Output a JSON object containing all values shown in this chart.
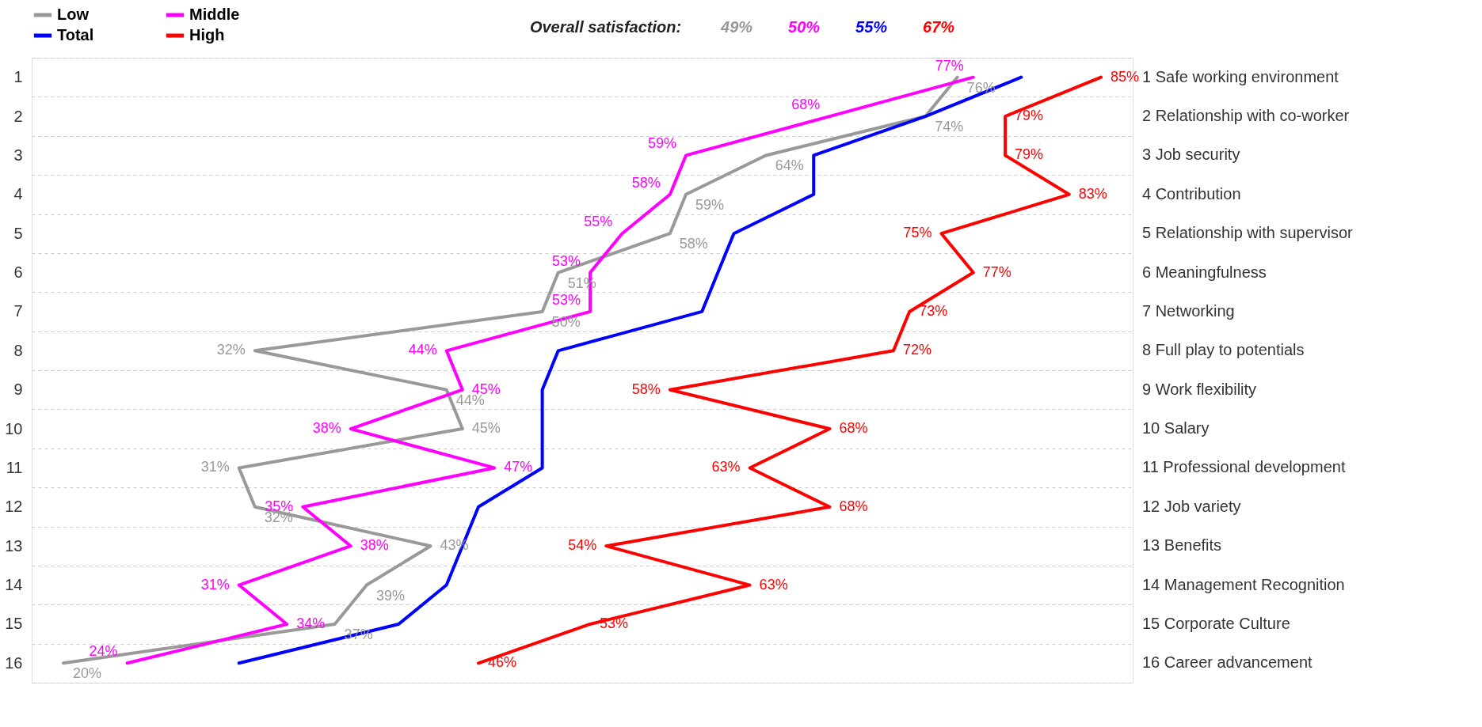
{
  "chart_data": {
    "type": "line",
    "orientation": "horizontal",
    "grid": "y",
    "legend": "top left",
    "marker": "none",
    "line_style": "solid",
    "categories": [
      "1",
      "2",
      "3",
      "4",
      "5",
      "6",
      "7",
      "8",
      "9",
      "10",
      "11",
      "12",
      "13",
      "14",
      "15",
      "16"
    ],
    "y2_categories": [
      "1 Safe working environment",
      "2 Relationship with co-worker",
      "3 Job security",
      "4 Contribution",
      "5 Relationship with supervisor",
      "6 Meaningfulness",
      "7 Networking",
      "8 Full play to potentials",
      "9 Work flexibility",
      "10 Salary",
      "11 Professional development",
      "12 Job variety",
      "13 Benefits",
      "14 Management Recognition",
      "15 Corporate Culture",
      "16 Career advancement"
    ],
    "annotations": [
      "Overall satisfaction:",
      "49%",
      "50%",
      "55%",
      "67%"
    ],
    "series": [
      {
        "name": "Low",
        "color": "#999999",
        "values": [
          76,
          74,
          64,
          59,
          58,
          51,
          50,
          32,
          44,
          45,
          31,
          32,
          43,
          39,
          37,
          20
        ],
        "value_labels": [
          "76%",
          "74%",
          "64%",
          "59%",
          "58%",
          "51%",
          "50%",
          "32%",
          "44%",
          "45%",
          "31%",
          "32%",
          "43%",
          "39%",
          "37%",
          "20%"
        ]
      },
      {
        "name": "Middle",
        "color": "#ff00ff",
        "values": [
          77,
          68,
          59,
          58,
          55,
          53,
          53,
          44,
          45,
          38,
          47,
          35,
          38,
          31,
          34,
          24
        ],
        "value_labels": [
          "77%",
          "68%",
          "59%",
          "58%",
          "55%",
          "53%",
          "53%",
          "44%",
          "45%",
          "38%",
          "47%",
          "35%",
          "38%",
          "31%",
          "34%",
          "24%"
        ]
      },
      {
        "name": "Total",
        "color": "#0000ff",
        "values": [
          80,
          74,
          67,
          67,
          62,
          61,
          60,
          51,
          50,
          50,
          50,
          46,
          45,
          44,
          41,
          31
        ]
      },
      {
        "name": "High",
        "color": "#ff0000",
        "values": [
          85,
          79,
          79,
          83,
          75,
          77,
          73,
          72,
          58,
          68,
          63,
          68,
          54,
          63,
          53,
          46
        ],
        "value_labels": [
          "85%",
          "79%",
          "79%",
          "83%",
          "75%",
          "77%",
          "73%",
          "72%",
          "58%",
          "68%",
          "63%",
          "68%",
          "54%",
          "63%",
          "53%",
          "46%"
        ]
      }
    ]
  }
}
